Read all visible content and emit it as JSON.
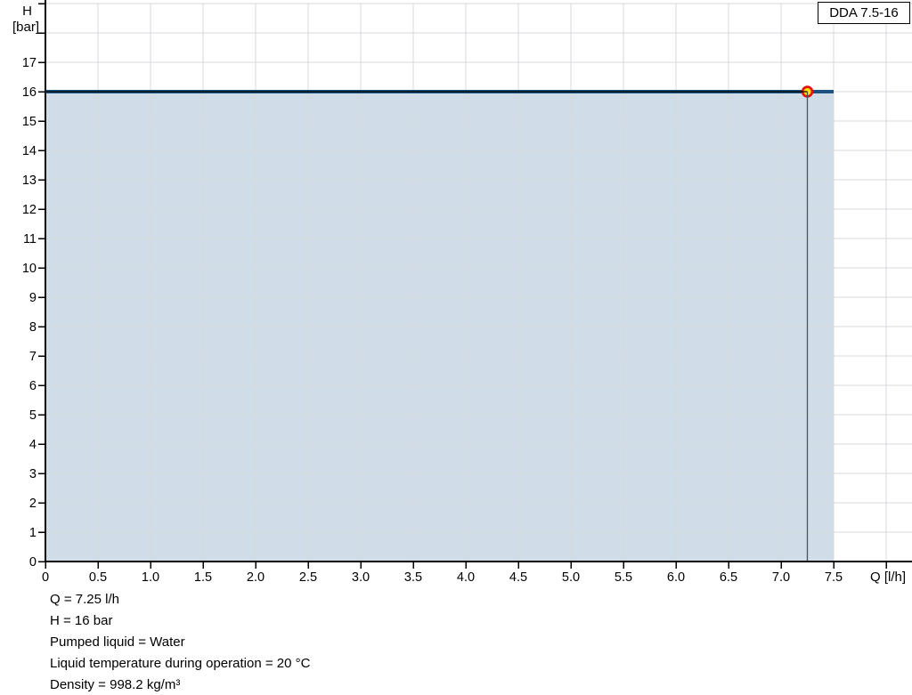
{
  "chart_data": {
    "type": "area",
    "legend_label": "DDA 7.5-16",
    "x_axis": {
      "unit_label": "Q [l/h]",
      "min": 0,
      "tick_step": 0.5,
      "grid_tick_max": 8.0,
      "axis_end_value": 8.24,
      "tick_labels": [
        "0",
        "0.5",
        "1.0",
        "1.5",
        "2.0",
        "2.5",
        "3.0",
        "3.5",
        "4.0",
        "4.5",
        "5.0",
        "5.5",
        "6.0",
        "6.5",
        "7.0",
        "7.5"
      ]
    },
    "y_axis": {
      "unit_label_lines": [
        "H",
        "[bar]"
      ],
      "min": 0,
      "tick_step": 1,
      "grid_tick_max": 19,
      "tick_labels": [
        "0",
        "1",
        "2",
        "3",
        "4",
        "5",
        "6",
        "7",
        "8",
        "9",
        "10",
        "11",
        "12",
        "13",
        "14",
        "15",
        "16",
        "17"
      ]
    },
    "series": [
      {
        "name": "DDA 7.5-16",
        "points": [
          {
            "Q": 0,
            "H": 16
          },
          {
            "Q": 7.5,
            "H": 16
          }
        ],
        "area_filled_to_zero": true
      }
    ],
    "operating_point": {
      "Q": 7.25,
      "H": 16
    },
    "annotations": [
      "Q = 7.25 l/h",
      "H = 16 bar",
      "Pumped liquid = Water",
      "Liquid temperature during operation = 20 °C",
      "Density = 998.2 kg/m³"
    ],
    "colors": {
      "curve": "#1d5180",
      "area_fill": "#d0dde9",
      "grid": "#d6d9dc",
      "axis": "#000000",
      "op_hline": "#000000",
      "op_vline": "#47545f",
      "marker_fill": "#ffe400",
      "marker_ring": "#e60f0f"
    }
  }
}
